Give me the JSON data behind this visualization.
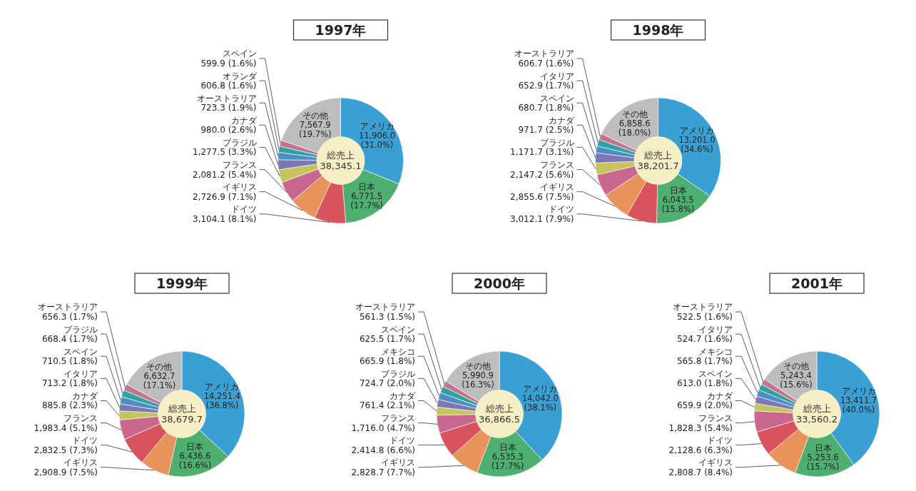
{
  "chart_data": [
    {
      "type": "donut",
      "title": "1997年",
      "categories": [
        "アメリカ",
        "日本",
        "ドイツ",
        "イギリス",
        "フランス",
        "ブラジル",
        "カナダ",
        "オーストラリア",
        "オランダ",
        "スペイン",
        "その他"
      ],
      "values": [
        11906.0,
        6771.5,
        3104.1,
        2726.9,
        2081.2,
        1277.5,
        980.0,
        723.3,
        606.8,
        599.9,
        7567.9
      ],
      "value_labels": [
        "11,906.0 (31.0%)",
        "6,771.5 (17.7%)",
        "3,104.1 (8.1%)",
        "2,726.9 (7.1%)",
        "2,081.2 (5.4%)",
        "1,277.5 (3.3%)",
        "980.0 (2.6%)",
        "723.3 (1.9%)",
        "606.8 (1.6%)",
        "599.9 (1.6%)",
        "7,567.9 (19.7%)"
      ],
      "colors": [
        "#3a9fd2",
        "#4faf70",
        "#d9535f",
        "#e8935b",
        "#c9678f",
        "#c6c45c",
        "#7c78b6",
        "#4b8fc2",
        "#2fa1a0",
        "#c47394",
        "#bdbdbd"
      ],
      "annotations": [
        "総売上",
        "38,345.1"
      ]
    },
    {
      "type": "donut",
      "title": "1998年",
      "categories": [
        "アメリカ",
        "日本",
        "ドイツ",
        "イギリス",
        "フランス",
        "ブラジル",
        "カナダ",
        "スペイン",
        "イタリア",
        "オーストラリア",
        "その他"
      ],
      "values": [
        13201.0,
        6043.5,
        3012.1,
        2855.6,
        2147.2,
        1171.7,
        971.7,
        680.7,
        652.9,
        606.7,
        6858.6
      ],
      "value_labels": [
        "13,201.0 (34.6%)",
        "6,043.5 (15.8%)",
        "3,012.1 (7.9%)",
        "2,855.6 (7.5%)",
        "2,147.2 (5.6%)",
        "1,171.7 (3.1%)",
        "971.7 (2.5%)",
        "680.7 (1.8%)",
        "652.9 (1.7%)",
        "606.7 (1.6%)",
        "6,858.6 (18.0%)"
      ],
      "colors": [
        "#3a9fd2",
        "#4faf70",
        "#d9535f",
        "#e8935b",
        "#c9678f",
        "#c6c45c",
        "#7c78b6",
        "#4b8fc2",
        "#2fa1a0",
        "#c47394",
        "#bdbdbd"
      ],
      "annotations": [
        "総売上",
        "38,201.7"
      ]
    },
    {
      "type": "donut",
      "title": "1999年",
      "categories": [
        "アメリカ",
        "日本",
        "イギリス",
        "ドイツ",
        "フランス",
        "カナダ",
        "イタリア",
        "スペイン",
        "ブラジル",
        "オーストラリア",
        "その他"
      ],
      "values": [
        14251.4,
        6436.6,
        2908.9,
        2832.5,
        1983.4,
        885.8,
        713.2,
        710.5,
        668.4,
        656.3,
        6632.7
      ],
      "value_labels": [
        "14,251.4 (36.8%)",
        "6,436.6 (16.6%)",
        "2,908.9 (7.5%)",
        "2,832.5 (7.3%)",
        "1,983.4 (5.1%)",
        "885.8 (2.3%)",
        "713.2 (1.8%)",
        "710.5 (1.8%)",
        "668.4 (1.7%)",
        "656.3 (1.7%)",
        "6,632.7 (17.1%)"
      ],
      "colors": [
        "#3a9fd2",
        "#4faf70",
        "#e8935b",
        "#d9535f",
        "#c9678f",
        "#c6c45c",
        "#7c78b6",
        "#4b8fc2",
        "#2fa1a0",
        "#c47394",
        "#bdbdbd"
      ],
      "annotations": [
        "総売上",
        "38,679.7"
      ]
    },
    {
      "type": "donut",
      "title": "2000年",
      "categories": [
        "アメリカ",
        "日本",
        "イギリス",
        "ドイツ",
        "フランス",
        "カナダ",
        "ブラジル",
        "メキシコ",
        "スペイン",
        "オーストラリア",
        "その他"
      ],
      "values": [
        14042.0,
        6535.3,
        2828.7,
        2414.8,
        1716.0,
        761.4,
        724.7,
        665.9,
        625.5,
        561.3,
        5990.9
      ],
      "value_labels": [
        "14,042.0 (38.1%)",
        "6,535.3 (17.7%)",
        "2,828.7 (7.7%)",
        "2,414.8 (6.6%)",
        "1,716.0 (4.7%)",
        "761.4 (2.1%)",
        "724.7 (2.0%)",
        "665.9 (1.8%)",
        "625.5 (1.7%)",
        "561.3 (1.5%)",
        "5,990.9 (16.3%)"
      ],
      "colors": [
        "#3a9fd2",
        "#4faf70",
        "#e8935b",
        "#d9535f",
        "#c9678f",
        "#c6c45c",
        "#7c78b6",
        "#4b8fc2",
        "#2fa1a0",
        "#c47394",
        "#bdbdbd"
      ],
      "annotations": [
        "総売上",
        "36,866.5"
      ]
    },
    {
      "type": "donut",
      "title": "2001年",
      "categories": [
        "アメリカ",
        "日本",
        "イギリス",
        "ドイツ",
        "フランス",
        "カナダ",
        "スペイン",
        "メキシコ",
        "イタリア",
        "オーストラリア",
        "その他"
      ],
      "values": [
        13411.7,
        5253.6,
        2808.7,
        2128.6,
        1828.3,
        659.9,
        613.0,
        565.8,
        524.7,
        522.5,
        5243.4
      ],
      "value_labels": [
        "13,411.7 (40.0%)",
        "5,253.6 (15.7%)",
        "2,808.7 (8.4%)",
        "2,128.6 (6.3%)",
        "1,828.3 (5.4%)",
        "659.9 (2.0%)",
        "613.0 (1.8%)",
        "565.8 (1.7%)",
        "524.7 (1.6%)",
        "522.5 (1.6%)",
        "5,243.4 (15.6%)"
      ],
      "colors": [
        "#3a9fd2",
        "#4faf70",
        "#e8935b",
        "#d9535f",
        "#c9678f",
        "#c6c45c",
        "#7c78b6",
        "#4b8fc2",
        "#2fa1a0",
        "#c47394",
        "#bdbdbd"
      ],
      "annotations": [
        "総売上",
        "33,560.2"
      ]
    }
  ]
}
